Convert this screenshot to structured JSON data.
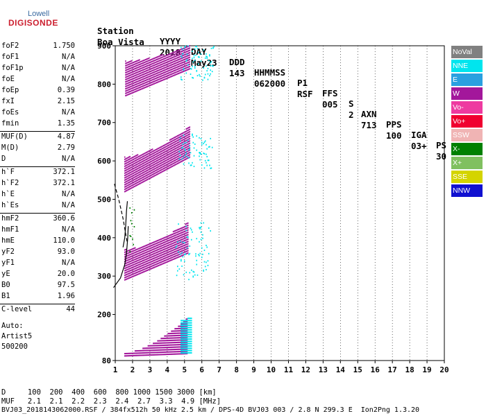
{
  "logo": {
    "top": "Lowell",
    "main": "DIGISONDE"
  },
  "header": {
    "labels": [
      "Station",
      "YYYY",
      "DAY",
      "DDD",
      "HHMMSS",
      "P1",
      "FFS",
      "S",
      "AXN",
      "PPS",
      "IGA",
      "PS"
    ],
    "values": [
      "Boa Vista",
      "2018",
      "May23",
      "143",
      "062000",
      "RSF",
      "005",
      "2",
      "713",
      "100",
      "03+",
      "30"
    ]
  },
  "params_group1": [
    {
      "k": "foF2",
      "v": "1.750"
    },
    {
      "k": "foF1",
      "v": "N/A"
    },
    {
      "k": "foF1p",
      "v": "N/A"
    },
    {
      "k": "foE",
      "v": "N/A"
    },
    {
      "k": "foEp",
      "v": "0.39"
    },
    {
      "k": "fxI",
      "v": "2.15"
    },
    {
      "k": "foEs",
      "v": "N/A"
    },
    {
      "k": "fmin",
      "v": "1.35"
    }
  ],
  "params_group2": [
    {
      "k": "MUF(D)",
      "v": "4.87"
    },
    {
      "k": "M(D)",
      "v": "2.79"
    },
    {
      "k": "D",
      "v": "N/A"
    }
  ],
  "params_group3": [
    {
      "k": "h`F",
      "v": "372.1"
    },
    {
      "k": "h`F2",
      "v": "372.1"
    },
    {
      "k": "h`E",
      "v": "N/A"
    },
    {
      "k": "h`Es",
      "v": "N/A"
    }
  ],
  "params_group4": [
    {
      "k": "hmF2",
      "v": "360.6"
    },
    {
      "k": "hmF1",
      "v": "N/A"
    },
    {
      "k": "hmE",
      "v": "110.0"
    },
    {
      "k": "yF2",
      "v": "93.0"
    },
    {
      "k": "yF1",
      "v": "N/A"
    },
    {
      "k": "yE",
      "v": "20.0"
    },
    {
      "k": "B0",
      "v": "97.5"
    },
    {
      "k": "B1",
      "v": "1.96"
    }
  ],
  "params_group5": [
    {
      "k": "C-level",
      "v": "44"
    }
  ],
  "auto_info": [
    "Auto:",
    "Artist5",
    "500200"
  ],
  "legend": [
    {
      "label": "NoVal",
      "color": "#808080"
    },
    {
      "label": "NNE",
      "color": "#00e5ee"
    },
    {
      "label": "E",
      "color": "#2aa0e0"
    },
    {
      "label": "W",
      "color": "#a3179b"
    },
    {
      "label": "Vo-",
      "color": "#ee3aa0"
    },
    {
      "label": "Vo+",
      "color": "#f00030"
    },
    {
      "label": "SSW",
      "color": "#f0b4b4"
    },
    {
      "label": "X-",
      "color": "#008000"
    },
    {
      "label": "X+",
      "color": "#80c060"
    },
    {
      "label": "SSE",
      "color": "#d4d400"
    },
    {
      "label": "NNW",
      "color": "#1010d0"
    }
  ],
  "footer": {
    "row1": "D     100  200  400  600  800 1000 1500 3000 [km]",
    "row2": "MUF   2.1  2.1  2.2  2.3  2.4  2.7  3.3  4.9 [MHz]",
    "row3": "BVJ03_2018143062000.RSF / 384fx512h 50 kHz 2.5 km / DPS-4D BVJ03 003 / 2.8 N 299.3 E  Ion2Png 1.3.20"
  },
  "chart_data": {
    "type": "scatter",
    "xlabel": "",
    "ylabel": "",
    "xlim": [
      1,
      20
    ],
    "ylim": [
      80,
      900
    ],
    "x_ticks": [
      1,
      2,
      3,
      4,
      5,
      6,
      7,
      8,
      9,
      10,
      11,
      12,
      13,
      14,
      15,
      16,
      17,
      18,
      19,
      20
    ],
    "y_ticks": [
      80,
      200,
      300,
      400,
      500,
      600,
      700,
      800,
      900
    ],
    "traces": [
      {
        "name": "W",
        "color": "#a3179b",
        "shape": "band",
        "x_start": 1.55,
        "x_end": 5.15,
        "y_base_start": 92,
        "y_base_end": 98,
        "y_top_start": 100,
        "y_top_end": 190,
        "echo": "1"
      },
      {
        "name": "NNE",
        "color": "#00e5ee",
        "shape": "band",
        "x_start": 4.8,
        "x_end": 5.4,
        "y_base_start": 100,
        "y_base_end": 100,
        "y_top_start": 185,
        "y_top_end": 195,
        "echo": "1"
      },
      {
        "name": "W",
        "color": "#a3179b",
        "shape": "band",
        "x_start": 1.55,
        "x_end": 5.2,
        "y_base_start": 290,
        "y_base_end": 360,
        "y_top_start": 370,
        "y_top_end": 440,
        "echo": "2"
      },
      {
        "name": "NNE",
        "color": "#00e5ee",
        "shape": "scatter",
        "x_start": 4.5,
        "x_end": 6.5,
        "y_min": 290,
        "y_max": 440,
        "echo": "2"
      },
      {
        "name": "W",
        "color": "#a3179b",
        "shape": "band",
        "x_start": 1.55,
        "x_end": 5.3,
        "y_base_start": 520,
        "y_base_end": 610,
        "y_top_start": 610,
        "y_top_end": 690,
        "echo": "3"
      },
      {
        "name": "NNE",
        "color": "#00e5ee",
        "shape": "scatter",
        "x_start": 4.7,
        "x_end": 6.6,
        "y_min": 580,
        "y_max": 670,
        "echo": "3"
      },
      {
        "name": "W",
        "color": "#a3179b",
        "shape": "band",
        "x_start": 1.6,
        "x_end": 5.3,
        "y_base_start": 770,
        "y_base_end": 840,
        "y_top_start": 860,
        "y_top_end": 900,
        "echo": "4"
      },
      {
        "name": "NNE",
        "color": "#00e5ee",
        "shape": "scatter",
        "x_start": 4.8,
        "x_end": 6.7,
        "y_min": 810,
        "y_max": 900,
        "echo": "4"
      },
      {
        "name": "X-",
        "color": "#008000",
        "shape": "scatter",
        "x_start": 1.85,
        "x_end": 2.1,
        "y_min": 360,
        "y_max": 515,
        "echo": "1"
      }
    ],
    "profile_solid": [
      [
        0.9,
        270
      ],
      [
        1.3,
        295
      ],
      [
        1.55,
        330
      ],
      [
        1.65,
        360
      ],
      [
        1.72,
        400
      ],
      [
        1.75,
        430
      ]
    ],
    "profile_dashed": [
      [
        0.95,
        540
      ],
      [
        1.2,
        500
      ],
      [
        1.45,
        450
      ],
      [
        1.6,
        410
      ],
      [
        1.68,
        390
      ]
    ],
    "profile_mufs": [
      [
        1.45,
        375
      ],
      [
        1.55,
        400
      ],
      [
        1.6,
        430
      ],
      [
        1.65,
        470
      ],
      [
        1.7,
        495
      ]
    ]
  }
}
